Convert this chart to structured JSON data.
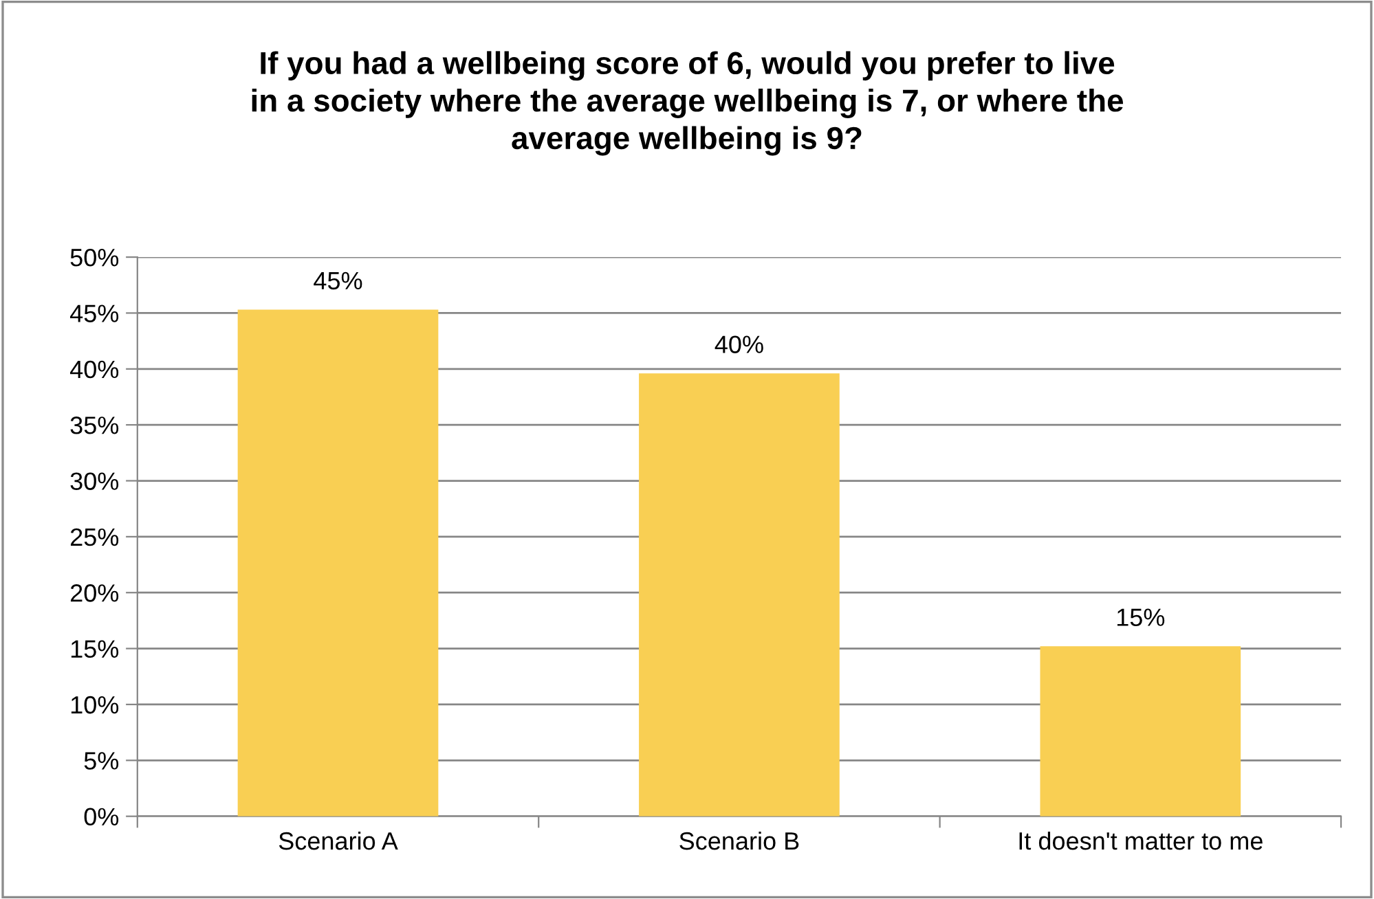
{
  "chart_data": {
    "type": "bar",
    "title": "If you had a wellbeing score of 6, would you prefer to live\nin a society where the average wellbeing is 7, or where the\naverage wellbeing is 9?",
    "categories": [
      "Scenario A",
      "Scenario B",
      "It doesn't matter to me"
    ],
    "values": [
      45.3,
      39.6,
      15.2
    ],
    "value_labels": [
      "45%",
      "40%",
      "15%"
    ],
    "color": "#f9cf53",
    "ylim": [
      0,
      50
    ],
    "yticks": [
      {
        "value": 0,
        "label": "0%"
      },
      {
        "value": 5,
        "label": "5%"
      },
      {
        "value": 10,
        "label": "10%"
      },
      {
        "value": 15,
        "label": "15%"
      },
      {
        "value": 20,
        "label": "20%"
      },
      {
        "value": 25,
        "label": "25%"
      },
      {
        "value": 30,
        "label": "30%"
      },
      {
        "value": 35,
        "label": "35%"
      },
      {
        "value": 40,
        "label": "40%"
      },
      {
        "value": 45,
        "label": "45%"
      },
      {
        "value": 50,
        "label": "50%"
      }
    ],
    "grid": "y"
  }
}
